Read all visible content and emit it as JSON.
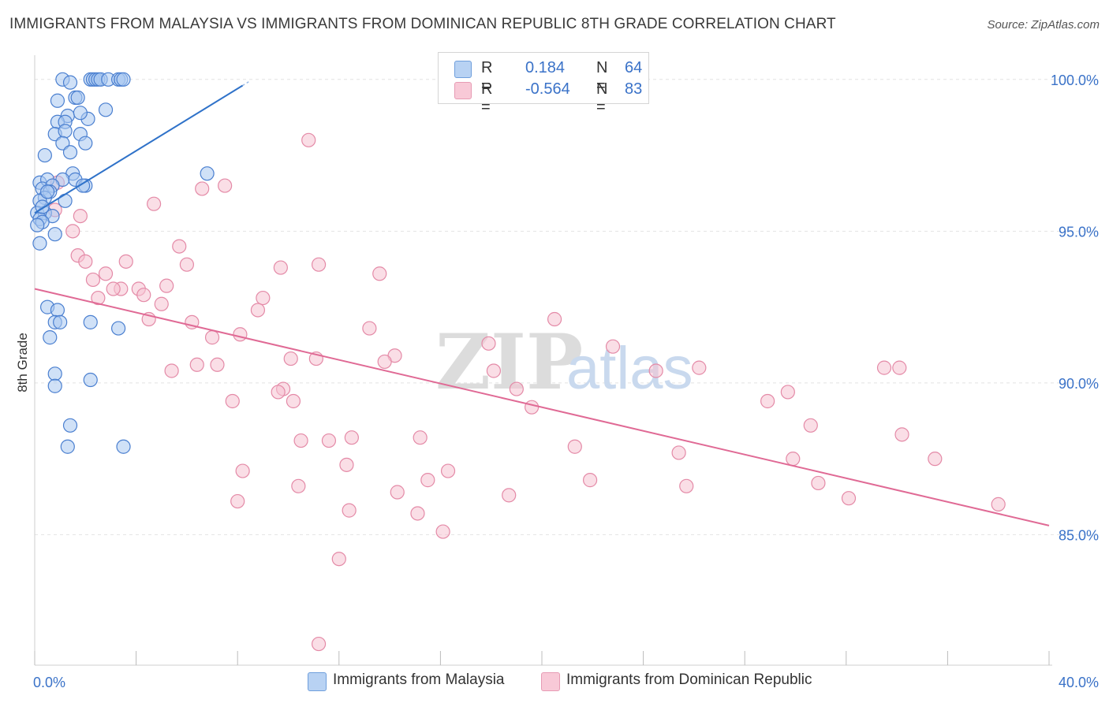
{
  "title": "IMMIGRANTS FROM MALAYSIA VS IMMIGRANTS FROM DOMINICAN REPUBLIC 8TH GRADE CORRELATION CHART",
  "source": "Source: ZipAtlas.com",
  "watermark": {
    "zip": "ZIP",
    "atlas": "atlas"
  },
  "legend": {
    "r_label": "R =",
    "n_label": "N =",
    "series1": {
      "r": "0.184",
      "n": "64"
    },
    "series2": {
      "r": "-0.564",
      "n": "83"
    }
  },
  "colors": {
    "blue_fill": "#a9c8f0",
    "blue_stroke": "#4a7fd0",
    "blue_line": "#2f72c9",
    "pink_fill": "#f6c3d2",
    "pink_stroke": "#e48aa7",
    "pink_line": "#e06a95",
    "axis_text": "#3a72c8",
    "grid": "#e2e2e2"
  },
  "chart_data": {
    "type": "scatter",
    "title": "IMMIGRANTS FROM MALAYSIA VS IMMIGRANTS FROM DOMINICAN REPUBLIC 8TH GRADE CORRELATION CHART",
    "xlabel": "",
    "ylabel": "8th Grade",
    "xlim": [
      0,
      40
    ],
    "ylim": [
      80.7,
      100.8
    ],
    "x_tick_labels": [
      {
        "value": 0,
        "label": "0.0%"
      },
      {
        "value": 40,
        "label": "40.0%"
      }
    ],
    "y_tick_labels": [
      {
        "value": 100,
        "label": "100.0%"
      },
      {
        "value": 95,
        "label": "95.0%"
      },
      {
        "value": 90,
        "label": "90.0%"
      },
      {
        "value": 85,
        "label": "85.0%"
      }
    ],
    "series": [
      {
        "name": "Immigrants from Malaysia",
        "r": 0.184,
        "n": 64,
        "trend": {
          "x": [
            0,
            8.2
          ],
          "y": [
            95.6,
            99.8
          ]
        },
        "points": [
          [
            1.1,
            100
          ],
          [
            1.4,
            99.9
          ],
          [
            2.2,
            100
          ],
          [
            2.3,
            100
          ],
          [
            2.4,
            100
          ],
          [
            2.5,
            100
          ],
          [
            2.6,
            100
          ],
          [
            2.9,
            100
          ],
          [
            3.3,
            100
          ],
          [
            3.4,
            100
          ],
          [
            3.5,
            100
          ],
          [
            0.9,
            99.3
          ],
          [
            1.6,
            99.4
          ],
          [
            1.7,
            99.4
          ],
          [
            1.3,
            98.8
          ],
          [
            2.1,
            98.7
          ],
          [
            2.8,
            99
          ],
          [
            0.9,
            98.6
          ],
          [
            1.2,
            98.6
          ],
          [
            1.8,
            98.9
          ],
          [
            0.8,
            98.2
          ],
          [
            1.2,
            98.3
          ],
          [
            1.8,
            98.2
          ],
          [
            1.1,
            97.9
          ],
          [
            2,
            97.9
          ],
          [
            1.4,
            97.6
          ],
          [
            0.4,
            97.5
          ],
          [
            1.5,
            96.9
          ],
          [
            1.1,
            96.7
          ],
          [
            0.2,
            96.6
          ],
          [
            0.5,
            96.7
          ],
          [
            1.6,
            96.7
          ],
          [
            2,
            96.5
          ],
          [
            0.3,
            96.4
          ],
          [
            0.7,
            96.5
          ],
          [
            0.6,
            96.3
          ],
          [
            0.4,
            96.1
          ],
          [
            0.2,
            96
          ],
          [
            1.2,
            96
          ],
          [
            0.1,
            95.6
          ],
          [
            0.4,
            95.6
          ],
          [
            0.2,
            95.4
          ],
          [
            0.7,
            95.5
          ],
          [
            0.3,
            95.3
          ],
          [
            0.8,
            94.9
          ],
          [
            0.2,
            94.6
          ],
          [
            6.8,
            96.9
          ],
          [
            0.5,
            92.5
          ],
          [
            0.9,
            92.4
          ],
          [
            0.8,
            92
          ],
          [
            1,
            92
          ],
          [
            2.2,
            92
          ],
          [
            3.3,
            91.8
          ],
          [
            0.6,
            91.5
          ],
          [
            0.8,
            90.3
          ],
          [
            2.2,
            90.1
          ],
          [
            0.8,
            89.9
          ],
          [
            1.4,
            88.6
          ],
          [
            1.3,
            87.9
          ],
          [
            3.5,
            87.9
          ],
          [
            0.1,
            95.2
          ],
          [
            0.3,
            95.8
          ],
          [
            1.9,
            96.5
          ],
          [
            0.5,
            96.3
          ]
        ]
      },
      {
        "name": "Immigrants from Dominican Republic",
        "r": -0.564,
        "n": 83,
        "trend": {
          "x": [
            0,
            40
          ],
          "y": [
            93.1,
            85.3
          ]
        },
        "points": [
          [
            10.8,
            98
          ],
          [
            6.6,
            96.4
          ],
          [
            7.5,
            96.5
          ],
          [
            4.7,
            95.9
          ],
          [
            1.8,
            95.5
          ],
          [
            1.5,
            95
          ],
          [
            0.8,
            95.7
          ],
          [
            0.9,
            96.6
          ],
          [
            5.7,
            94.5
          ],
          [
            6,
            93.9
          ],
          [
            9.7,
            93.8
          ],
          [
            11.2,
            93.9
          ],
          [
            13.6,
            93.6
          ],
          [
            1.7,
            94.2
          ],
          [
            2,
            94
          ],
          [
            3.6,
            94
          ],
          [
            2.3,
            93.4
          ],
          [
            2.8,
            93.6
          ],
          [
            3.4,
            93.1
          ],
          [
            3.1,
            93.1
          ],
          [
            4.1,
            93.1
          ],
          [
            5.2,
            93.2
          ],
          [
            4.3,
            92.9
          ],
          [
            9,
            92.8
          ],
          [
            2.5,
            92.8
          ],
          [
            5,
            92.6
          ],
          [
            8.8,
            92.4
          ],
          [
            4.5,
            92.1
          ],
          [
            6.2,
            92
          ],
          [
            13.2,
            91.8
          ],
          [
            20.5,
            92.1
          ],
          [
            8.1,
            91.6
          ],
          [
            7,
            91.5
          ],
          [
            17.9,
            91.3
          ],
          [
            22.8,
            91.2
          ],
          [
            11.1,
            90.8
          ],
          [
            14.2,
            90.9
          ],
          [
            10.1,
            90.8
          ],
          [
            13.8,
            90.7
          ],
          [
            7.2,
            90.6
          ],
          [
            6.4,
            90.6
          ],
          [
            18.1,
            90.4
          ],
          [
            24.5,
            90.4
          ],
          [
            26.2,
            90.5
          ],
          [
            33.5,
            90.5
          ],
          [
            34.1,
            90.5
          ],
          [
            5.4,
            90.4
          ],
          [
            9.8,
            89.8
          ],
          [
            9.6,
            89.7
          ],
          [
            19,
            89.8
          ],
          [
            29.7,
            89.7
          ],
          [
            7.8,
            89.4
          ],
          [
            10.2,
            89.4
          ],
          [
            19.6,
            89.2
          ],
          [
            28.9,
            89.4
          ],
          [
            30.6,
            88.6
          ],
          [
            12.5,
            88.2
          ],
          [
            15.2,
            88.2
          ],
          [
            11.6,
            88.1
          ],
          [
            10.5,
            88.1
          ],
          [
            21.3,
            87.9
          ],
          [
            25.4,
            87.7
          ],
          [
            34.2,
            88.3
          ],
          [
            29.9,
            87.5
          ],
          [
            35.5,
            87.5
          ],
          [
            12.3,
            87.3
          ],
          [
            8.2,
            87.1
          ],
          [
            16.3,
            87.1
          ],
          [
            15.5,
            86.8
          ],
          [
            21.9,
            86.8
          ],
          [
            30.9,
            86.7
          ],
          [
            10.4,
            86.6
          ],
          [
            25.7,
            86.6
          ],
          [
            14.3,
            86.4
          ],
          [
            18.7,
            86.3
          ],
          [
            32.1,
            86.2
          ],
          [
            8,
            86.1
          ],
          [
            38,
            86
          ],
          [
            12.4,
            85.8
          ],
          [
            15.1,
            85.7
          ],
          [
            16.1,
            85.1
          ],
          [
            12,
            84.2
          ],
          [
            11.2,
            81.4
          ]
        ]
      }
    ]
  },
  "bottom_legend": {
    "series1": "Immigrants from Malaysia",
    "series2": "Immigrants from Dominican Republic"
  }
}
